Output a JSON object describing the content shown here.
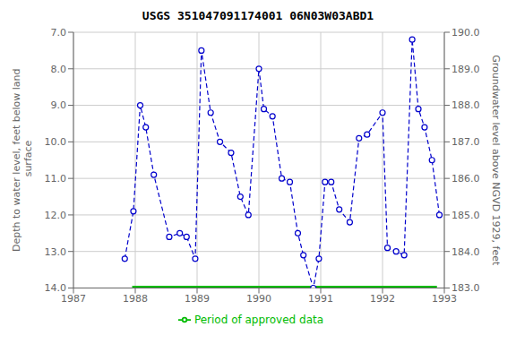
{
  "chart_data": {
    "type": "line",
    "title": "USGS 351047091174001 06N03W03ABD1",
    "ylabel": "Depth to water level, feet below land\n surface",
    "y2label": "Groundwater level above NGVD 1929, feet",
    "xlim": [
      1987,
      1993
    ],
    "xticks": [
      1987,
      1988,
      1989,
      1990,
      1991,
      1992,
      1993
    ],
    "ylim": [
      14.0,
      7.0
    ],
    "yticks": [
      {
        "value": 7.0,
        "label": "7.0"
      },
      {
        "value": 8.0,
        "label": "8.0"
      },
      {
        "value": 9.0,
        "label": "9.0"
      },
      {
        "value": 10.0,
        "label": "10.0"
      },
      {
        "value": 11.0,
        "label": "11.0"
      },
      {
        "value": 12.0,
        "label": "12.0"
      },
      {
        "value": 13.0,
        "label": "13.0"
      },
      {
        "value": 14.0,
        "label": "14.0"
      }
    ],
    "y2lim": [
      183.0,
      190.0
    ],
    "y2ticks": [
      {
        "value": 183.0,
        "label": "183.0"
      },
      {
        "value": 184.0,
        "label": "184.0"
      },
      {
        "value": 185.0,
        "label": "185.0"
      },
      {
        "value": 186.0,
        "label": "186.0"
      },
      {
        "value": 187.0,
        "label": "187.0"
      },
      {
        "value": 188.0,
        "label": "188.0"
      },
      {
        "value": 189.0,
        "label": "189.0"
      },
      {
        "value": 190.0,
        "label": "190.0"
      }
    ],
    "grid": true,
    "legend": "bottom",
    "series": [
      {
        "color": "#0000cc",
        "line_style": "dashed",
        "marker": "circle",
        "x": [
          1987.83,
          1987.97,
          1988.08,
          1988.17,
          1988.3,
          1988.55,
          1988.72,
          1988.83,
          1988.97,
          1989.07,
          1989.22,
          1989.37,
          1989.55,
          1989.7,
          1989.83,
          1990.0,
          1990.08,
          1990.22,
          1990.37,
          1990.5,
          1990.63,
          1990.72,
          1990.88,
          1990.97,
          1991.07,
          1991.17,
          1991.3,
          1991.47,
          1991.62,
          1991.75,
          1992.0,
          1992.08,
          1992.22,
          1992.35,
          1992.48,
          1992.58,
          1992.68,
          1992.8,
          1992.92
        ],
        "values": [
          13.2,
          11.9,
          9.0,
          9.6,
          10.9,
          12.6,
          12.5,
          12.6,
          13.2,
          7.5,
          9.2,
          10.0,
          10.3,
          11.5,
          12.0,
          8.0,
          9.1,
          9.3,
          11.0,
          11.1,
          12.5,
          13.1,
          14.0,
          13.2,
          11.1,
          11.1,
          11.85,
          12.2,
          9.9,
          9.8,
          9.2,
          12.9,
          13.0,
          13.1,
          7.2,
          9.1,
          9.6,
          10.5,
          12.0
        ]
      },
      {
        "name": "Period of approved data",
        "color": "#00bb00",
        "line_style": "solid",
        "x": [
          1987.95,
          1992.88
        ],
        "values": [
          14.0,
          14.0
        ]
      }
    ]
  }
}
